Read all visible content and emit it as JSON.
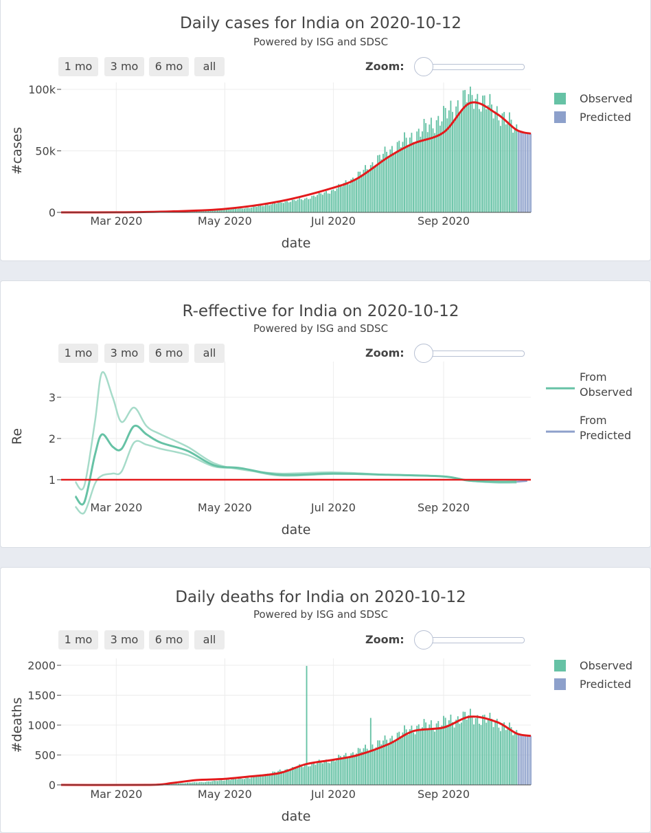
{
  "controls": {
    "range_buttons": [
      "1 mo",
      "3 mo",
      "6 mo",
      "all"
    ],
    "zoom_label": "Zoom:"
  },
  "colors": {
    "observed": "#66c2a5",
    "predicted": "#8da0cb",
    "trend": "#e31a1c"
  },
  "chart_data": [
    {
      "id": "cases",
      "type": "bar",
      "title": "Daily cases for India on 2020-10-12",
      "subtitle": "Powered by ISG and SDSC",
      "xlabel": "date",
      "ylabel": "#cases",
      "x_ticks": [
        {
          "date": "2020-03-01",
          "label": "Mar 2020"
        },
        {
          "date": "2020-05-01",
          "label": "May 2020"
        },
        {
          "date": "2020-07-01",
          "label": "Jul 2020"
        },
        {
          "date": "2020-09-01",
          "label": "Sep 2020"
        }
      ],
      "y_ticks": [
        {
          "value": 0,
          "label": "0"
        },
        {
          "value": 50000,
          "label": "50k"
        },
        {
          "value": 100000,
          "label": "100k"
        }
      ],
      "x_range": [
        "2020-01-30",
        "2020-10-20"
      ],
      "y_range": [
        0,
        100000
      ],
      "legend": [
        "Observed",
        "Predicted"
      ],
      "observed_end": "2020-10-12",
      "observed_profile": [
        [
          "2020-01-30",
          0
        ],
        [
          "2020-03-01",
          10
        ],
        [
          "2020-03-25",
          80
        ],
        [
          "2020-04-15",
          1000
        ],
        [
          "2020-05-01",
          2200
        ],
        [
          "2020-05-15",
          3800
        ],
        [
          "2020-06-01",
          8000
        ],
        [
          "2020-06-15",
          11000
        ],
        [
          "2020-07-01",
          18000
        ],
        [
          "2020-07-15",
          30000
        ],
        [
          "2020-08-01",
          50000
        ],
        [
          "2020-08-15",
          62000
        ],
        [
          "2020-09-01",
          78000
        ],
        [
          "2020-09-16",
          96000
        ],
        [
          "2020-10-01",
          82000
        ],
        [
          "2020-10-12",
          67000
        ]
      ],
      "predicted_profile": [
        [
          "2020-10-12",
          67000
        ],
        [
          "2020-10-20",
          64000
        ]
      ],
      "trend_line": [
        [
          "2020-01-30",
          0
        ],
        [
          "2020-03-01",
          50
        ],
        [
          "2020-04-01",
          800
        ],
        [
          "2020-05-01",
          2800
        ],
        [
          "2020-06-01",
          9000
        ],
        [
          "2020-07-01",
          20000
        ],
        [
          "2020-07-15",
          28000
        ],
        [
          "2020-08-01",
          45000
        ],
        [
          "2020-08-15",
          56000
        ],
        [
          "2020-09-01",
          65000
        ],
        [
          "2020-09-16",
          89000
        ],
        [
          "2020-10-01",
          80000
        ],
        [
          "2020-10-12",
          67000
        ],
        [
          "2020-10-20",
          64000
        ]
      ]
    },
    {
      "id": "re",
      "type": "line",
      "title": "R-effective for India on 2020-10-12",
      "subtitle": "Powered by ISG and SDSC",
      "xlabel": "date",
      "ylabel": "Re",
      "x_ticks": [
        {
          "date": "2020-03-01",
          "label": "Mar 2020"
        },
        {
          "date": "2020-05-01",
          "label": "May 2020"
        },
        {
          "date": "2020-07-01",
          "label": "Jul 2020"
        },
        {
          "date": "2020-09-01",
          "label": "Sep 2020"
        }
      ],
      "y_ticks": [
        {
          "value": 1,
          "label": "1"
        },
        {
          "value": 2,
          "label": "2"
        },
        {
          "value": 3,
          "label": "3"
        }
      ],
      "x_range": [
        "2020-01-30",
        "2020-10-20"
      ],
      "y_range": [
        0.4,
        3.7
      ],
      "legend": [
        "From\nObserved",
        "From\nPredicted"
      ],
      "reference_line": 1,
      "upper_band": [
        [
          "2020-02-07",
          0.95
        ],
        [
          "2020-02-12",
          0.85
        ],
        [
          "2020-02-18",
          2.4
        ],
        [
          "2020-02-22",
          3.6
        ],
        [
          "2020-02-28",
          3.0
        ],
        [
          "2020-03-04",
          2.4
        ],
        [
          "2020-03-11",
          2.75
        ],
        [
          "2020-03-18",
          2.3
        ],
        [
          "2020-03-26",
          2.1
        ],
        [
          "2020-04-10",
          1.8
        ],
        [
          "2020-04-25",
          1.4
        ],
        [
          "2020-05-10",
          1.25
        ],
        [
          "2020-06-01",
          1.15
        ],
        [
          "2020-07-01",
          1.18
        ],
        [
          "2020-08-01",
          1.12
        ],
        [
          "2020-09-01",
          1.08
        ],
        [
          "2020-09-15",
          0.98
        ],
        [
          "2020-10-01",
          0.95
        ],
        [
          "2020-10-12",
          0.96
        ]
      ],
      "center_line": [
        [
          "2020-02-07",
          0.6
        ],
        [
          "2020-02-12",
          0.45
        ],
        [
          "2020-02-18",
          1.6
        ],
        [
          "2020-02-22",
          2.1
        ],
        [
          "2020-02-28",
          1.8
        ],
        [
          "2020-03-04",
          1.75
        ],
        [
          "2020-03-11",
          2.3
        ],
        [
          "2020-03-18",
          2.1
        ],
        [
          "2020-03-26",
          1.9
        ],
        [
          "2020-04-10",
          1.7
        ],
        [
          "2020-04-25",
          1.35
        ],
        [
          "2020-05-10",
          1.28
        ],
        [
          "2020-06-01",
          1.12
        ],
        [
          "2020-07-01",
          1.15
        ],
        [
          "2020-08-01",
          1.12
        ],
        [
          "2020-09-01",
          1.08
        ],
        [
          "2020-09-15",
          0.98
        ],
        [
          "2020-10-01",
          0.95
        ],
        [
          "2020-10-12",
          0.95
        ]
      ],
      "lower_band": [
        [
          "2020-02-07",
          0.35
        ],
        [
          "2020-02-12",
          0.2
        ],
        [
          "2020-02-18",
          0.9
        ],
        [
          "2020-02-22",
          1.1
        ],
        [
          "2020-02-28",
          1.15
        ],
        [
          "2020-03-04",
          1.2
        ],
        [
          "2020-03-11",
          1.9
        ],
        [
          "2020-03-18",
          1.85
        ],
        [
          "2020-03-26",
          1.75
        ],
        [
          "2020-04-10",
          1.6
        ],
        [
          "2020-04-25",
          1.32
        ],
        [
          "2020-05-10",
          1.27
        ],
        [
          "2020-06-01",
          1.1
        ],
        [
          "2020-07-01",
          1.14
        ],
        [
          "2020-08-01",
          1.12
        ],
        [
          "2020-09-01",
          1.08
        ],
        [
          "2020-09-15",
          0.98
        ],
        [
          "2020-10-01",
          0.93
        ],
        [
          "2020-10-12",
          0.93
        ]
      ],
      "predicted_line": [
        [
          "2020-10-12",
          0.95
        ],
        [
          "2020-10-18",
          0.97
        ]
      ]
    },
    {
      "id": "deaths",
      "type": "bar",
      "title": "Daily deaths for India on 2020-10-12",
      "subtitle": "Powered by ISG and SDSC",
      "xlabel": "date",
      "ylabel": "#deaths",
      "x_ticks": [
        {
          "date": "2020-03-01",
          "label": "Mar 2020"
        },
        {
          "date": "2020-05-01",
          "label": "May 2020"
        },
        {
          "date": "2020-07-01",
          "label": "Jul 2020"
        },
        {
          "date": "2020-09-01",
          "label": "Sep 2020"
        }
      ],
      "y_ticks": [
        {
          "value": 0,
          "label": "0"
        },
        {
          "value": 500,
          "label": "500"
        },
        {
          "value": 1000,
          "label": "1000"
        },
        {
          "value": 1500,
          "label": "1500"
        },
        {
          "value": 2000,
          "label": "2000"
        }
      ],
      "x_range": [
        "2020-01-30",
        "2020-10-20"
      ],
      "y_range": [
        0,
        2000
      ],
      "legend": [
        "Observed",
        "Predicted"
      ],
      "observed_end": "2020-10-12",
      "observed_profile": [
        [
          "2020-01-30",
          0
        ],
        [
          "2020-03-20",
          0
        ],
        [
          "2020-04-01",
          20
        ],
        [
          "2020-04-20",
          50
        ],
        [
          "2020-05-01",
          80
        ],
        [
          "2020-05-15",
          120
        ],
        [
          "2020-06-01",
          230
        ],
        [
          "2020-06-15",
          330
        ],
        [
          "2020-07-01",
          420
        ],
        [
          "2020-07-15",
          560
        ],
        [
          "2020-08-01",
          760
        ],
        [
          "2020-08-15",
          950
        ],
        [
          "2020-09-01",
          1040
        ],
        [
          "2020-09-15",
          1150
        ],
        [
          "2020-10-01",
          1050
        ],
        [
          "2020-10-12",
          860
        ]
      ],
      "spikes": [
        [
          "2020-06-16",
          1990
        ],
        [
          "2020-07-22",
          1120
        ]
      ],
      "predicted_profile": [
        [
          "2020-10-12",
          860
        ],
        [
          "2020-10-20",
          820
        ]
      ],
      "trend_line": [
        [
          "2020-01-30",
          0
        ],
        [
          "2020-03-20",
          0
        ],
        [
          "2020-04-01",
          30
        ],
        [
          "2020-04-15",
          80
        ],
        [
          "2020-05-01",
          100
        ],
        [
          "2020-05-15",
          140
        ],
        [
          "2020-06-01",
          200
        ],
        [
          "2020-06-16",
          350
        ],
        [
          "2020-07-01",
          420
        ],
        [
          "2020-07-15",
          500
        ],
        [
          "2020-08-01",
          680
        ],
        [
          "2020-08-15",
          900
        ],
        [
          "2020-09-01",
          960
        ],
        [
          "2020-09-16",
          1140
        ],
        [
          "2020-10-01",
          1050
        ],
        [
          "2020-10-12",
          860
        ],
        [
          "2020-10-20",
          820
        ]
      ]
    }
  ]
}
